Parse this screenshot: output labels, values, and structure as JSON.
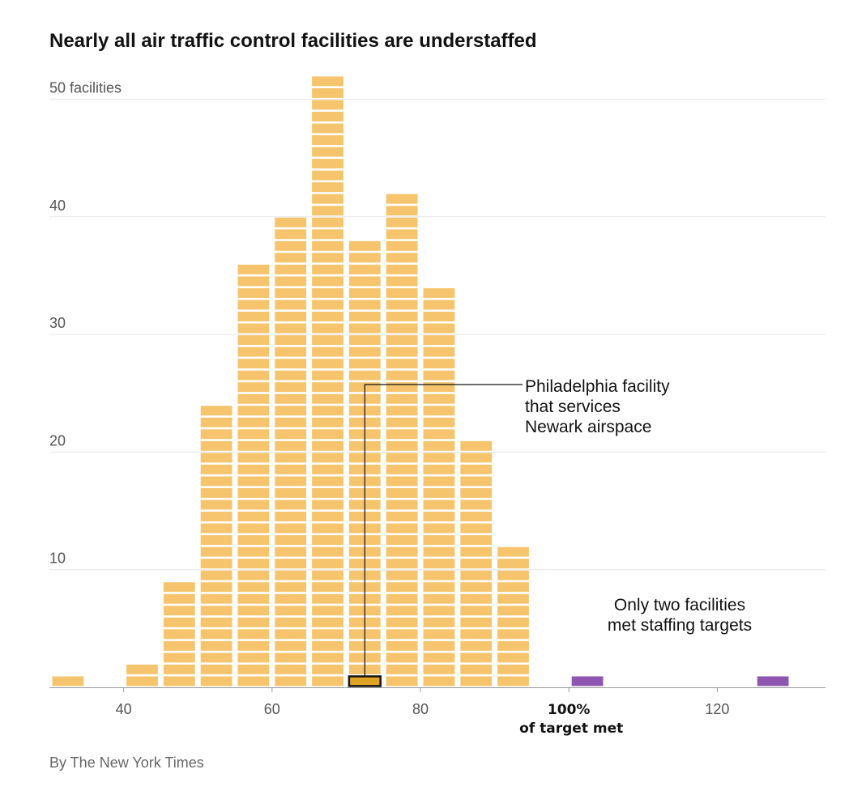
{
  "chart_data": {
    "type": "bar",
    "title": "Nearly all air traffic control facilities are understaffed",
    "ylabel": "50 facilities",
    "ylim": [
      0,
      52
    ],
    "xlim": [
      30,
      135
    ],
    "y_ticks": [
      {
        "value": 10,
        "label": "10"
      },
      {
        "value": 20,
        "label": "20"
      },
      {
        "value": 30,
        "label": "30"
      },
      {
        "value": 40,
        "label": "40"
      },
      {
        "value": 50,
        "label": "50 facilities"
      }
    ],
    "x_ticks": [
      {
        "value": 40,
        "label": "40"
      },
      {
        "value": 60,
        "label": "60"
      },
      {
        "value": 80,
        "label": "80"
      },
      {
        "value": 100,
        "label": "100%"
      },
      {
        "value": 120,
        "label": "120"
      }
    ],
    "x_axis_sublabel": "of target met",
    "bin_width": 5,
    "bins": [
      {
        "start": 30,
        "count": 1,
        "met_target": false
      },
      {
        "start": 40,
        "count": 2,
        "met_target": false
      },
      {
        "start": 45,
        "count": 9,
        "met_target": false
      },
      {
        "start": 50,
        "count": 24,
        "met_target": false
      },
      {
        "start": 55,
        "count": 36,
        "met_target": false
      },
      {
        "start": 60,
        "count": 40,
        "met_target": false
      },
      {
        "start": 65,
        "count": 52,
        "met_target": false
      },
      {
        "start": 70,
        "count": 38,
        "met_target": false
      },
      {
        "start": 75,
        "count": 42,
        "met_target": false
      },
      {
        "start": 80,
        "count": 34,
        "met_target": false
      },
      {
        "start": 85,
        "count": 21,
        "met_target": false
      },
      {
        "start": 90,
        "count": 12,
        "met_target": false
      },
      {
        "start": 100,
        "count": 1,
        "met_target": true
      },
      {
        "start": 125,
        "count": 1,
        "met_target": true
      }
    ],
    "highlight": {
      "bin_start": 70,
      "row": 1
    },
    "annotations": [
      {
        "id": "philadelphia",
        "lines": [
          "Philadelphia facility",
          "that services",
          "Newark airspace"
        ]
      },
      {
        "id": "met-targets",
        "lines": [
          "Only two facilities",
          "met staffing targets"
        ]
      }
    ],
    "colors": {
      "understaffed": "#f5c46c",
      "met_target": "#8e56b0",
      "highlight": "#e1a323",
      "highlight_stroke": "#121212"
    },
    "grid": true
  },
  "credit": "By The New York Times"
}
